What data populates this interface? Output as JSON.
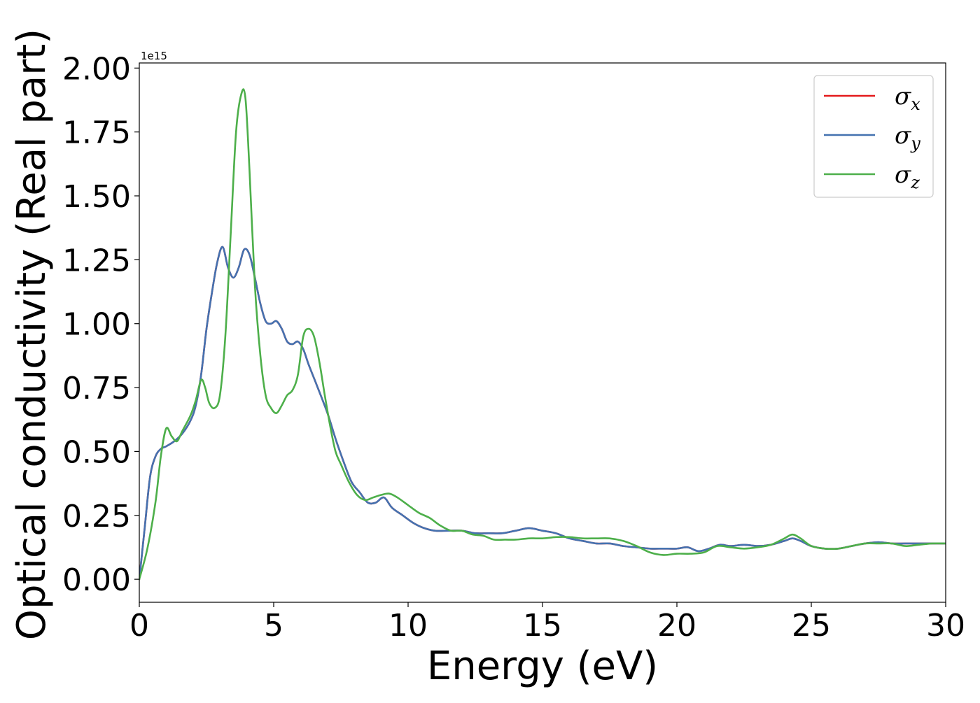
{
  "chart_data": {
    "type": "line",
    "xlabel": "Energy (eV)",
    "ylabel": "Optical conductivity (Real part)",
    "y_offset_text": "1e15",
    "xlim": [
      0,
      30
    ],
    "ylim": [
      -0.09,
      2.02
    ],
    "x_ticks": [
      0,
      5,
      10,
      15,
      20,
      25,
      30
    ],
    "x_tick_labels": [
      "0",
      "5",
      "10",
      "15",
      "20",
      "25",
      "30"
    ],
    "y_ticks": [
      0.0,
      0.25,
      0.5,
      0.75,
      1.0,
      1.25,
      1.5,
      1.75,
      2.0
    ],
    "y_tick_labels": [
      "0.00",
      "0.25",
      "0.50",
      "0.75",
      "1.00",
      "1.25",
      "1.50",
      "1.75",
      "2.00"
    ],
    "grid": false,
    "legend_position": "top-right",
    "series": [
      {
        "name": "σx",
        "legend_base": "σ",
        "legend_sub": "x",
        "color": "#e41a1c",
        "x": [
          0,
          0.2,
          0.4,
          0.6,
          0.8,
          1.0,
          1.3,
          1.6,
          1.9,
          2.1,
          2.3,
          2.5,
          2.7,
          2.9,
          3.1,
          3.3,
          3.5,
          3.7,
          3.9,
          4.1,
          4.3,
          4.5,
          4.7,
          4.9,
          5.1,
          5.3,
          5.5,
          5.7,
          5.9,
          6.1,
          6.3,
          6.6,
          7.0,
          7.3,
          7.6,
          7.9,
          8.2,
          8.5,
          8.8,
          9.1,
          9.4,
          9.8,
          10.2,
          10.6,
          11.0,
          11.5,
          12.0,
          12.5,
          13.0,
          13.5,
          14.0,
          14.5,
          15.0,
          15.5,
          16.0,
          16.5,
          17.0,
          17.5,
          18.0,
          18.5,
          19.0,
          19.5,
          20.0,
          20.4,
          20.8,
          21.2,
          21.6,
          22.0,
          22.5,
          23.0,
          23.5,
          24.0,
          24.3,
          24.6,
          25.0,
          25.5,
          26.0,
          26.5,
          27.0,
          27.5,
          28.0,
          28.5,
          29.0,
          29.5,
          30.0
        ],
        "values": [
          0.0,
          0.2,
          0.4,
          0.48,
          0.51,
          0.52,
          0.54,
          0.57,
          0.62,
          0.68,
          0.8,
          0.98,
          1.12,
          1.24,
          1.3,
          1.22,
          1.18,
          1.22,
          1.29,
          1.27,
          1.18,
          1.08,
          1.01,
          1.0,
          1.01,
          0.98,
          0.93,
          0.92,
          0.93,
          0.9,
          0.84,
          0.76,
          0.65,
          0.55,
          0.46,
          0.38,
          0.34,
          0.3,
          0.3,
          0.32,
          0.28,
          0.25,
          0.22,
          0.2,
          0.19,
          0.19,
          0.19,
          0.18,
          0.18,
          0.18,
          0.19,
          0.2,
          0.19,
          0.18,
          0.16,
          0.15,
          0.14,
          0.14,
          0.13,
          0.125,
          0.12,
          0.12,
          0.12,
          0.125,
          0.11,
          0.12,
          0.135,
          0.13,
          0.135,
          0.13,
          0.135,
          0.15,
          0.16,
          0.15,
          0.13,
          0.12,
          0.12,
          0.13,
          0.14,
          0.145,
          0.14,
          0.14,
          0.14,
          0.14,
          0.14
        ]
      },
      {
        "name": "σy",
        "legend_base": "σ",
        "legend_sub": "y",
        "color": "#4472b0",
        "x": [
          0,
          0.2,
          0.4,
          0.6,
          0.8,
          1.0,
          1.3,
          1.6,
          1.9,
          2.1,
          2.3,
          2.5,
          2.7,
          2.9,
          3.1,
          3.3,
          3.5,
          3.7,
          3.9,
          4.1,
          4.3,
          4.5,
          4.7,
          4.9,
          5.1,
          5.3,
          5.5,
          5.7,
          5.9,
          6.1,
          6.3,
          6.6,
          7.0,
          7.3,
          7.6,
          7.9,
          8.2,
          8.5,
          8.8,
          9.1,
          9.4,
          9.8,
          10.2,
          10.6,
          11.0,
          11.5,
          12.0,
          12.5,
          13.0,
          13.5,
          14.0,
          14.5,
          15.0,
          15.5,
          16.0,
          16.5,
          17.0,
          17.5,
          18.0,
          18.5,
          19.0,
          19.5,
          20.0,
          20.4,
          20.8,
          21.2,
          21.6,
          22.0,
          22.5,
          23.0,
          23.5,
          24.0,
          24.3,
          24.6,
          25.0,
          25.5,
          26.0,
          26.5,
          27.0,
          27.5,
          28.0,
          28.5,
          29.0,
          29.5,
          30.0
        ],
        "values": [
          0.0,
          0.2,
          0.4,
          0.48,
          0.51,
          0.52,
          0.54,
          0.57,
          0.62,
          0.68,
          0.8,
          0.98,
          1.12,
          1.24,
          1.3,
          1.22,
          1.18,
          1.22,
          1.29,
          1.27,
          1.18,
          1.08,
          1.01,
          1.0,
          1.01,
          0.98,
          0.93,
          0.92,
          0.93,
          0.9,
          0.84,
          0.76,
          0.65,
          0.55,
          0.46,
          0.38,
          0.34,
          0.3,
          0.3,
          0.32,
          0.28,
          0.25,
          0.22,
          0.2,
          0.19,
          0.19,
          0.19,
          0.18,
          0.18,
          0.18,
          0.19,
          0.2,
          0.19,
          0.18,
          0.16,
          0.15,
          0.14,
          0.14,
          0.13,
          0.125,
          0.12,
          0.12,
          0.12,
          0.125,
          0.11,
          0.12,
          0.135,
          0.13,
          0.135,
          0.13,
          0.135,
          0.15,
          0.16,
          0.15,
          0.13,
          0.12,
          0.12,
          0.13,
          0.14,
          0.145,
          0.14,
          0.14,
          0.14,
          0.14,
          0.14
        ]
      },
      {
        "name": "σz",
        "legend_base": "σ",
        "legend_sub": "z",
        "color": "#4daf4a",
        "x": [
          0,
          0.3,
          0.6,
          0.8,
          1.0,
          1.2,
          1.4,
          1.6,
          1.9,
          2.1,
          2.3,
          2.45,
          2.6,
          2.8,
          3.0,
          3.2,
          3.4,
          3.6,
          3.8,
          3.95,
          4.1,
          4.3,
          4.5,
          4.7,
          4.9,
          5.1,
          5.3,
          5.5,
          5.7,
          5.9,
          6.1,
          6.3,
          6.5,
          6.7,
          6.9,
          7.1,
          7.3,
          7.5,
          7.8,
          8.1,
          8.4,
          8.7,
          9.0,
          9.3,
          9.6,
          10.0,
          10.4,
          10.8,
          11.2,
          11.6,
          12.0,
          12.4,
          12.8,
          13.2,
          13.6,
          14.0,
          14.5,
          15.0,
          15.5,
          16.0,
          16.5,
          17.0,
          17.5,
          18.0,
          18.5,
          19.0,
          19.5,
          20.0,
          20.5,
          21.0,
          21.5,
          22.0,
          22.5,
          23.0,
          23.5,
          24.0,
          24.3,
          24.6,
          25.0,
          25.5,
          26.0,
          26.5,
          27.0,
          27.5,
          28.0,
          28.5,
          29.0,
          29.5,
          30.0
        ],
        "values": [
          0.0,
          0.12,
          0.3,
          0.48,
          0.59,
          0.56,
          0.54,
          0.58,
          0.64,
          0.7,
          0.78,
          0.75,
          0.69,
          0.67,
          0.72,
          0.95,
          1.35,
          1.75,
          1.9,
          1.88,
          1.6,
          1.15,
          0.88,
          0.72,
          0.67,
          0.65,
          0.68,
          0.72,
          0.74,
          0.8,
          0.95,
          0.98,
          0.95,
          0.85,
          0.72,
          0.6,
          0.5,
          0.45,
          0.38,
          0.33,
          0.31,
          0.32,
          0.33,
          0.335,
          0.32,
          0.29,
          0.26,
          0.24,
          0.21,
          0.19,
          0.19,
          0.175,
          0.17,
          0.155,
          0.155,
          0.155,
          0.16,
          0.16,
          0.165,
          0.165,
          0.16,
          0.16,
          0.16,
          0.15,
          0.13,
          0.105,
          0.095,
          0.1,
          0.1,
          0.105,
          0.13,
          0.125,
          0.12,
          0.125,
          0.135,
          0.16,
          0.175,
          0.16,
          0.13,
          0.12,
          0.12,
          0.13,
          0.14,
          0.14,
          0.14,
          0.13,
          0.135,
          0.14,
          0.14
        ]
      }
    ]
  }
}
